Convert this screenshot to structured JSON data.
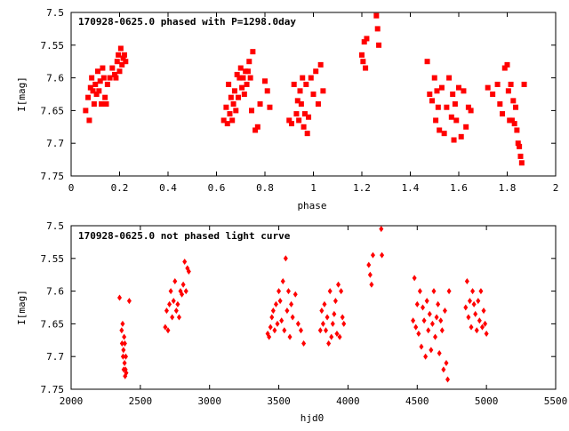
{
  "colors": {
    "points": "#ff0000",
    "axes": "#000000",
    "background": "#ffffff"
  },
  "chart_data": [
    {
      "type": "scatter",
      "title": "170928-0625.0 phased with P=1298.0day",
      "xlabel": "phase",
      "ylabel": "I[mag]",
      "xlim": [
        0,
        2
      ],
      "ylim": [
        7.75,
        7.5
      ],
      "y_inverted": true,
      "xticks": [
        "0",
        "0.2",
        "0.4",
        "0.6",
        "0.8",
        "1",
        "1.2",
        "1.4",
        "1.6",
        "1.8",
        "2"
      ],
      "yticks": [
        "7.5",
        "7.55",
        "7.6",
        "7.65",
        "7.7",
        "7.75"
      ],
      "marker": "filled-square",
      "grid": false,
      "x": [
        0.06,
        0.07,
        0.075,
        0.08,
        0.085,
        0.09,
        0.095,
        0.1,
        0.105,
        0.11,
        0.115,
        0.12,
        0.125,
        0.13,
        0.135,
        0.14,
        0.145,
        0.15,
        0.16,
        0.17,
        0.18,
        0.185,
        0.19,
        0.195,
        0.2,
        0.205,
        0.21,
        0.215,
        0.22,
        0.225,
        0.63,
        0.64,
        0.645,
        0.65,
        0.655,
        0.66,
        0.665,
        0.67,
        0.675,
        0.68,
        0.685,
        0.69,
        0.695,
        0.7,
        0.705,
        0.71,
        0.715,
        0.72,
        0.725,
        0.73,
        0.735,
        0.74,
        0.745,
        0.75,
        0.76,
        0.77,
        0.78,
        0.8,
        0.81,
        0.82,
        0.9,
        0.91,
        0.92,
        0.93,
        0.935,
        0.94,
        0.945,
        0.95,
        0.955,
        0.96,
        0.965,
        0.97,
        0.975,
        0.98,
        0.99,
        1.0,
        1.01,
        1.02,
        1.03,
        1.04,
        1.2,
        1.205,
        1.21,
        1.215,
        1.22,
        1.26,
        1.265,
        1.27,
        1.47,
        1.48,
        1.49,
        1.5,
        1.505,
        1.51,
        1.515,
        1.52,
        1.53,
        1.54,
        1.55,
        1.56,
        1.57,
        1.575,
        1.58,
        1.585,
        1.59,
        1.6,
        1.61,
        1.62,
        1.63,
        1.64,
        1.65,
        1.72,
        1.74,
        1.76,
        1.77,
        1.78,
        1.79,
        1.8,
        1.805,
        1.81,
        1.815,
        1.82,
        1.825,
        1.83,
        1.835,
        1.84,
        1.845,
        1.85,
        1.855,
        1.86,
        1.87
      ],
      "y": [
        7.65,
        7.63,
        7.665,
        7.615,
        7.6,
        7.62,
        7.64,
        7.61,
        7.625,
        7.59,
        7.62,
        7.605,
        7.64,
        7.585,
        7.6,
        7.63,
        7.64,
        7.61,
        7.6,
        7.585,
        7.595,
        7.6,
        7.575,
        7.565,
        7.59,
        7.555,
        7.58,
        7.57,
        7.565,
        7.575,
        7.665,
        7.645,
        7.67,
        7.61,
        7.655,
        7.63,
        7.665,
        7.64,
        7.62,
        7.65,
        7.595,
        7.63,
        7.6,
        7.585,
        7.615,
        7.6,
        7.625,
        7.59,
        7.61,
        7.59,
        7.575,
        7.6,
        7.65,
        7.56,
        7.68,
        7.675,
        7.64,
        7.605,
        7.62,
        7.645,
        7.665,
        7.67,
        7.61,
        7.655,
        7.635,
        7.665,
        7.62,
        7.64,
        7.6,
        7.675,
        7.655,
        7.61,
        7.685,
        7.66,
        7.6,
        7.625,
        7.59,
        7.64,
        7.58,
        7.62,
        7.565,
        7.575,
        7.545,
        7.585,
        7.54,
        7.505,
        7.525,
        7.55,
        7.575,
        7.625,
        7.635,
        7.6,
        7.665,
        7.62,
        7.645,
        7.68,
        7.615,
        7.685,
        7.645,
        7.6,
        7.66,
        7.625,
        7.695,
        7.64,
        7.665,
        7.615,
        7.69,
        7.62,
        7.675,
        7.645,
        7.65,
        7.615,
        7.625,
        7.61,
        7.64,
        7.655,
        7.585,
        7.58,
        7.62,
        7.665,
        7.61,
        7.665,
        7.635,
        7.67,
        7.645,
        7.68,
        7.7,
        7.705,
        7.72,
        7.73,
        7.61
      ]
    },
    {
      "type": "scatter",
      "title": "170928-0625.0 not phased light curve",
      "xlabel": "hjd0",
      "ylabel": "I[mag]",
      "xlim": [
        2000,
        5500
      ],
      "ylim": [
        7.75,
        7.5
      ],
      "y_inverted": true,
      "xticks": [
        "2000",
        "2500",
        "3000",
        "3500",
        "4000",
        "4500",
        "5000",
        "5500"
      ],
      "yticks": [
        "7.5",
        "7.55",
        "7.6",
        "7.65",
        "7.7",
        "7.75"
      ],
      "marker": "filled-diamond",
      "grid": false,
      "x": [
        2350,
        2365,
        2368,
        2372,
        2375,
        2378,
        2380,
        2383,
        2386,
        2388,
        2390,
        2393,
        2395,
        2398,
        2420,
        2680,
        2690,
        2700,
        2710,
        2720,
        2730,
        2740,
        2750,
        2760,
        2770,
        2780,
        2790,
        2800,
        2810,
        2820,
        2830,
        2840,
        2850,
        3420,
        3430,
        3440,
        3450,
        3460,
        3470,
        3480,
        3490,
        3500,
        3510,
        3520,
        3530,
        3540,
        3550,
        3560,
        3570,
        3580,
        3590,
        3600,
        3620,
        3640,
        3660,
        3680,
        3800,
        3810,
        3820,
        3830,
        3840,
        3850,
        3860,
        3870,
        3880,
        3890,
        3900,
        3910,
        3920,
        3930,
        3940,
        3950,
        3960,
        3970,
        4150,
        4160,
        4170,
        4180,
        4240,
        4245,
        4470,
        4480,
        4490,
        4500,
        4510,
        4520,
        4530,
        4540,
        4550,
        4560,
        4570,
        4580,
        4590,
        4600,
        4610,
        4620,
        4630,
        4640,
        4650,
        4660,
        4670,
        4680,
        4690,
        4700,
        4710,
        4720,
        4730,
        4850,
        4860,
        4870,
        4880,
        4890,
        4900,
        4910,
        4920,
        4930,
        4940,
        4950,
        4960,
        4970,
        4980,
        4990,
        5000
      ],
      "y": [
        7.61,
        7.66,
        7.68,
        7.65,
        7.7,
        7.69,
        7.72,
        7.67,
        7.71,
        7.68,
        7.73,
        7.72,
        7.7,
        7.725,
        7.615,
        7.655,
        7.63,
        7.66,
        7.62,
        7.6,
        7.64,
        7.615,
        7.585,
        7.63,
        7.62,
        7.64,
        7.6,
        7.605,
        7.59,
        7.555,
        7.6,
        7.565,
        7.57,
        7.665,
        7.67,
        7.655,
        7.64,
        7.63,
        7.66,
        7.62,
        7.65,
        7.6,
        7.615,
        7.645,
        7.585,
        7.66,
        7.55,
        7.63,
        7.6,
        7.67,
        7.62,
        7.64,
        7.605,
        7.65,
        7.66,
        7.68,
        7.66,
        7.63,
        7.65,
        7.62,
        7.66,
        7.64,
        7.68,
        7.6,
        7.67,
        7.65,
        7.635,
        7.615,
        7.665,
        7.59,
        7.67,
        7.6,
        7.64,
        7.65,
        7.56,
        7.575,
        7.59,
        7.545,
        7.505,
        7.545,
        7.645,
        7.58,
        7.655,
        7.62,
        7.665,
        7.6,
        7.685,
        7.625,
        7.645,
        7.7,
        7.615,
        7.66,
        7.635,
        7.69,
        7.65,
        7.6,
        7.67,
        7.64,
        7.62,
        7.695,
        7.645,
        7.66,
        7.72,
        7.63,
        7.71,
        7.735,
        7.6,
        7.625,
        7.585,
        7.64,
        7.615,
        7.655,
        7.6,
        7.62,
        7.635,
        7.66,
        7.615,
        7.645,
        7.6,
        7.655,
        7.63,
        7.65,
        7.665
      ]
    }
  ]
}
